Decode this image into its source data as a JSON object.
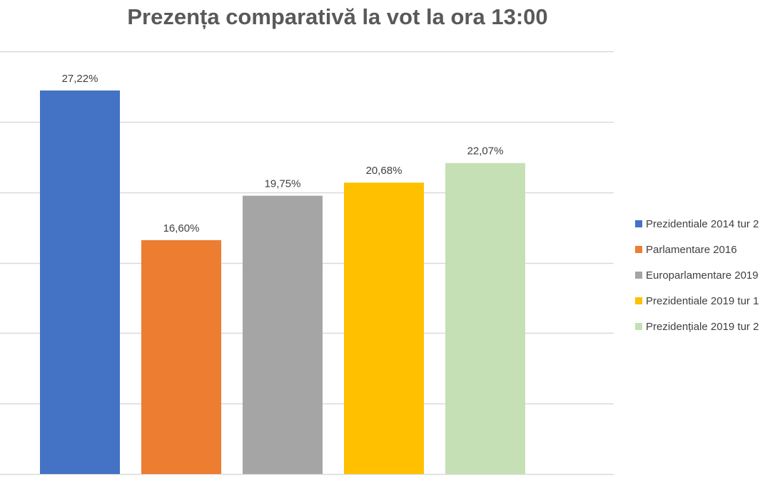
{
  "chart_data": {
    "type": "bar",
    "title": "Prezența comparativă la vot la ora 13:00",
    "xlabel": "",
    "ylabel": "",
    "ylim": [
      0,
      30
    ],
    "grid": true,
    "legend_position": "right",
    "series": [
      {
        "name": "Prezidentiale 2014 tur 2",
        "value": 27.22,
        "label": "27,22%",
        "color": "#4472C4"
      },
      {
        "name": "Parlamentare 2016",
        "value": 16.6,
        "label": "16,60%",
        "color": "#ED7D31"
      },
      {
        "name": "Europarlamentare 2019",
        "value": 19.75,
        "label": "19,75%",
        "color": "#A5A5A5"
      },
      {
        "name": "Prezidentiale 2019 tur 1",
        "value": 20.68,
        "label": "20,68%",
        "color": "#FFC000"
      },
      {
        "name": "Prezidențiale 2019 tur 2",
        "value": 22.07,
        "label": "22,07%",
        "color": "#C5E0B4"
      }
    ]
  }
}
